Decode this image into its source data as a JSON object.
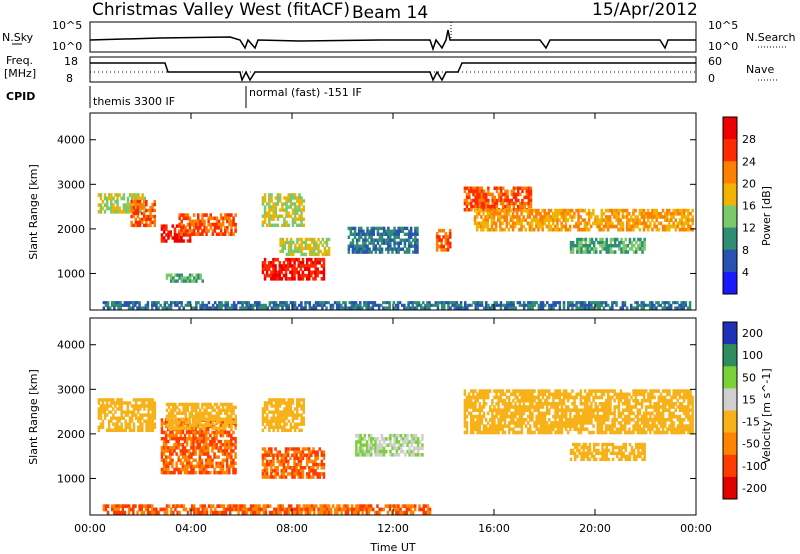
{
  "header": {
    "station": "Christmas Valley West (fitACF)",
    "beam": "Beam 14",
    "date": "15/Apr/2012"
  },
  "top_panels": {
    "nsky_label": "N.Sky",
    "nsearch_label": "N.Search",
    "freq_label_1": "Freq.",
    "freq_label_2": "[MHz]",
    "nave_label": "Nave",
    "cpid_label": "CPID",
    "noise_ticks": [
      "10^5",
      "10^0"
    ],
    "freq_ticks": [
      "18",
      "8"
    ],
    "nave_ticks": [
      "60",
      "0"
    ],
    "cpid_segments": [
      {
        "label": "themis 3300 IF",
        "start_h": 0.0
      },
      {
        "label": "normal (fast) -151 IF",
        "start_h": 6.15
      }
    ]
  },
  "chart_data": [
    {
      "type": "heatmap",
      "panel": "power",
      "xlabel": "",
      "ylabel": "Slant Range [km]",
      "xlim": [
        0,
        24
      ],
      "ylim": [
        180,
        4600
      ],
      "yticks": [
        1000,
        2000,
        3000,
        4000
      ],
      "colorbar_label": "Power [dB]",
      "colorbar_ticks": [
        4,
        8,
        12,
        16,
        20,
        24,
        28
      ],
      "colorbar_range": [
        0,
        32
      ],
      "colors": [
        "#1a1aff",
        "#2a52b0",
        "#2f8d73",
        "#7bc96b",
        "#f2b300",
        "#ff7f00",
        "#ff2a00",
        "#ee0000"
      ],
      "features": [
        {
          "t0": 0.3,
          "t1": 2.2,
          "r0": 2350,
          "r1": 2800,
          "level": 16
        },
        {
          "t0": 1.6,
          "t1": 2.6,
          "r0": 2050,
          "r1": 2650,
          "level": 24
        },
        {
          "t0": 2.8,
          "t1": 4.0,
          "r0": 1700,
          "r1": 2100,
          "level": 28
        },
        {
          "t0": 3.5,
          "t1": 5.8,
          "r0": 1850,
          "r1": 2350,
          "level": 24
        },
        {
          "t0": 3.0,
          "t1": 4.5,
          "r0": 800,
          "r1": 1000,
          "level": 12
        },
        {
          "t0": 6.8,
          "t1": 8.5,
          "r0": 2050,
          "r1": 2800,
          "level": 16
        },
        {
          "t0": 6.8,
          "t1": 9.3,
          "r0": 850,
          "r1": 1350,
          "level": 28
        },
        {
          "t0": 7.5,
          "t1": 9.5,
          "r0": 1400,
          "r1": 1800,
          "level": 16
        },
        {
          "t0": 10.2,
          "t1": 13.0,
          "r0": 1450,
          "r1": 2050,
          "level": 8
        },
        {
          "t0": 13.7,
          "t1": 14.3,
          "r0": 1500,
          "r1": 2000,
          "level": 24
        },
        {
          "t0": 14.8,
          "t1": 17.5,
          "r0": 2400,
          "r1": 2950,
          "level": 24
        },
        {
          "t0": 15.2,
          "t1": 23.9,
          "r0": 1950,
          "r1": 2450,
          "level": 20
        },
        {
          "t0": 19.0,
          "t1": 22.0,
          "r0": 1450,
          "r1": 1800,
          "level": 12
        },
        {
          "t0": 0.5,
          "t1": 23.8,
          "r0": 200,
          "r1": 380,
          "level": 8
        }
      ]
    },
    {
      "type": "heatmap",
      "panel": "velocity",
      "xlabel": "Time UT",
      "ylabel": "Slant Range [km]",
      "xlim": [
        0,
        24
      ],
      "ylim": [
        180,
        4600
      ],
      "yticks": [
        1000,
        2000,
        3000,
        4000
      ],
      "xticks": [
        "00:00",
        "04:00",
        "08:00",
        "12:00",
        "16:00",
        "20:00",
        "00:00"
      ],
      "colorbar_label": "Velocity [m s^-1]",
      "colorbar_ticks": [
        200,
        100,
        50,
        15,
        -15,
        -50,
        -100,
        -200
      ],
      "colors": [
        "#1f2fb8",
        "#2e8c5f",
        "#7bd13a",
        "#cfcfcf",
        "#f7b21a",
        "#ff8400",
        "#ff3b00",
        "#e00000"
      ],
      "features": [
        {
          "t0": 0.3,
          "t1": 2.6,
          "r0": 2050,
          "r1": 2800,
          "level": 0
        },
        {
          "t0": 2.8,
          "t1": 5.8,
          "r0": 1100,
          "r1": 2350,
          "level": -50
        },
        {
          "t0": 3.0,
          "t1": 5.8,
          "r0": 2100,
          "r1": 2700,
          "level": 0
        },
        {
          "t0": 6.8,
          "t1": 9.3,
          "r0": 1000,
          "r1": 1700,
          "level": -50
        },
        {
          "t0": 6.8,
          "t1": 8.5,
          "r0": 2050,
          "r1": 2800,
          "level": 0
        },
        {
          "t0": 10.5,
          "t1": 13.2,
          "r0": 1500,
          "r1": 2000,
          "level": 50
        },
        {
          "t0": 14.8,
          "t1": 23.9,
          "r0": 2000,
          "r1": 3000,
          "level": 0
        },
        {
          "t0": 19.0,
          "t1": 22.0,
          "r0": 1400,
          "r1": 1800,
          "level": 0
        },
        {
          "t0": 0.5,
          "t1": 13.5,
          "r0": 200,
          "r1": 420,
          "level": -50
        }
      ]
    }
  ]
}
